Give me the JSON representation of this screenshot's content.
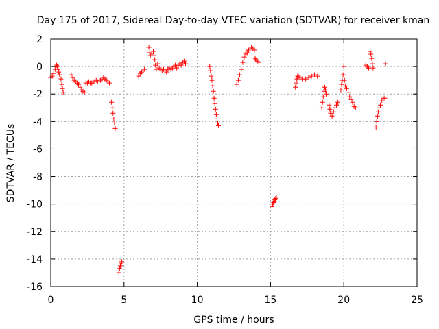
{
  "chart_data": {
    "type": "scatter",
    "title": "Day 175 of 2017, Sidereal Day-to-day VTEC variation (SDTVAR) for receiver kman",
    "xlabel": "GPS time / hours",
    "ylabel": "SDTVAR / TECUs",
    "xlim": [
      0,
      25
    ],
    "ylim": [
      -16,
      2
    ],
    "xticks": [
      0,
      5,
      10,
      15,
      20,
      25
    ],
    "xtick_labels": [
      "0",
      "5",
      "10",
      "15",
      "20",
      "25"
    ],
    "yticks": [
      2,
      0,
      -2,
      -4,
      -6,
      -8,
      -10,
      -12,
      -14,
      -16
    ],
    "ytick_labels": [
      "2",
      "0",
      "-2",
      "-4",
      "-6",
      "-8",
      "-10",
      "-12",
      "-14",
      "-16"
    ],
    "grid": true,
    "marker": "+",
    "marker_color": "#ff0000",
    "series": [
      {
        "name": "SDTVAR",
        "points": [
          [
            0.0,
            -0.8
          ],
          [
            0.1,
            -0.7
          ],
          [
            0.2,
            -0.5
          ],
          [
            0.3,
            -0.2
          ],
          [
            0.35,
            0.0
          ],
          [
            0.4,
            0.1
          ],
          [
            0.45,
            0.0
          ],
          [
            0.5,
            -0.2
          ],
          [
            0.55,
            -0.4
          ],
          [
            0.6,
            -0.6
          ],
          [
            0.7,
            -0.9
          ],
          [
            0.75,
            -1.3
          ],
          [
            0.8,
            -1.6
          ],
          [
            0.85,
            -1.9
          ],
          [
            1.4,
            -0.6
          ],
          [
            1.5,
            -0.8
          ],
          [
            1.6,
            -1.0
          ],
          [
            1.7,
            -1.1
          ],
          [
            1.8,
            -1.2
          ],
          [
            1.9,
            -1.3
          ],
          [
            2.0,
            -1.5
          ],
          [
            2.1,
            -1.7
          ],
          [
            2.2,
            -1.8
          ],
          [
            2.3,
            -1.9
          ],
          [
            2.4,
            -1.2
          ],
          [
            2.5,
            -1.2
          ],
          [
            2.6,
            -1.1
          ],
          [
            2.7,
            -1.2
          ],
          [
            2.8,
            -1.2
          ],
          [
            2.9,
            -1.1
          ],
          [
            3.0,
            -1.1
          ],
          [
            3.1,
            -1.0
          ],
          [
            3.2,
            -1.1
          ],
          [
            3.3,
            -1.1
          ],
          [
            3.4,
            -1.0
          ],
          [
            3.5,
            -0.9
          ],
          [
            3.6,
            -0.8
          ],
          [
            3.7,
            -0.9
          ],
          [
            3.8,
            -1.0
          ],
          [
            3.9,
            -1.1
          ],
          [
            4.0,
            -1.2
          ],
          [
            4.15,
            -2.6
          ],
          [
            4.2,
            -3.0
          ],
          [
            4.25,
            -3.4
          ],
          [
            4.3,
            -3.8
          ],
          [
            4.35,
            -4.1
          ],
          [
            4.4,
            -4.5
          ],
          [
            4.65,
            -15.0
          ],
          [
            4.7,
            -14.7
          ],
          [
            4.75,
            -14.5
          ],
          [
            4.8,
            -14.3
          ],
          [
            4.85,
            -14.2
          ],
          [
            6.0,
            -0.7
          ],
          [
            6.1,
            -0.5
          ],
          [
            6.2,
            -0.4
          ],
          [
            6.3,
            -0.3
          ],
          [
            6.4,
            -0.2
          ],
          [
            6.7,
            1.4
          ],
          [
            6.75,
            1.0
          ],
          [
            6.8,
            0.8
          ],
          [
            6.9,
            0.9
          ],
          [
            7.0,
            1.1
          ],
          [
            7.05,
            0.8
          ],
          [
            7.1,
            0.5
          ],
          [
            7.15,
            0.1
          ],
          [
            7.2,
            -0.2
          ],
          [
            7.3,
            0.2
          ],
          [
            7.4,
            -0.1
          ],
          [
            7.5,
            -0.2
          ],
          [
            7.6,
            -0.3
          ],
          [
            7.7,
            -0.2
          ],
          [
            7.8,
            -0.3
          ],
          [
            7.9,
            -0.4
          ],
          [
            8.0,
            -0.2
          ],
          [
            8.1,
            -0.1
          ],
          [
            8.2,
            -0.2
          ],
          [
            8.3,
            -0.1
          ],
          [
            8.4,
            0.0
          ],
          [
            8.5,
            0.1
          ],
          [
            8.6,
            -0.1
          ],
          [
            8.7,
            0.1
          ],
          [
            8.8,
            0.2
          ],
          [
            8.9,
            0.1
          ],
          [
            9.0,
            0.3
          ],
          [
            9.1,
            0.4
          ],
          [
            9.2,
            0.2
          ],
          [
            10.85,
            0.0
          ],
          [
            10.9,
            -0.3
          ],
          [
            10.95,
            -0.7
          ],
          [
            11.0,
            -1.0
          ],
          [
            11.05,
            -1.4
          ],
          [
            11.1,
            -1.8
          ],
          [
            11.15,
            -2.3
          ],
          [
            11.2,
            -2.7
          ],
          [
            11.25,
            -3.1
          ],
          [
            11.3,
            -3.5
          ],
          [
            11.35,
            -3.8
          ],
          [
            11.4,
            -4.1
          ],
          [
            11.45,
            -4.3
          ],
          [
            12.7,
            -1.3
          ],
          [
            12.8,
            -1.0
          ],
          [
            12.9,
            -0.6
          ],
          [
            13.0,
            -0.2
          ],
          [
            13.1,
            0.3
          ],
          [
            13.2,
            0.7
          ],
          [
            13.3,
            0.9
          ],
          [
            13.4,
            1.0
          ],
          [
            13.5,
            1.2
          ],
          [
            13.6,
            1.3
          ],
          [
            13.7,
            1.4
          ],
          [
            13.8,
            1.3
          ],
          [
            13.9,
            1.2
          ],
          [
            13.95,
            0.6
          ],
          [
            14.0,
            0.5
          ],
          [
            14.1,
            0.4
          ],
          [
            14.2,
            0.3
          ],
          [
            15.1,
            -10.2
          ],
          [
            15.15,
            -10.0
          ],
          [
            15.2,
            -9.9
          ],
          [
            15.25,
            -9.8
          ],
          [
            15.3,
            -9.7
          ],
          [
            15.35,
            -9.6
          ],
          [
            15.4,
            -9.5
          ],
          [
            16.7,
            -1.5
          ],
          [
            16.75,
            -1.2
          ],
          [
            16.8,
            -0.9
          ],
          [
            16.85,
            -0.7
          ],
          [
            16.9,
            -0.7
          ],
          [
            17.0,
            -0.8
          ],
          [
            17.2,
            -0.9
          ],
          [
            17.4,
            -0.9
          ],
          [
            17.6,
            -0.8
          ],
          [
            17.8,
            -0.7
          ],
          [
            18.0,
            -0.6
          ],
          [
            18.2,
            -0.7
          ],
          [
            18.5,
            -3.0
          ],
          [
            18.55,
            -2.6
          ],
          [
            18.6,
            -2.2
          ],
          [
            18.65,
            -1.8
          ],
          [
            18.7,
            -1.5
          ],
          [
            18.75,
            -1.7
          ],
          [
            18.8,
            -2.0
          ],
          [
            19.0,
            -2.8
          ],
          [
            19.05,
            -3.1
          ],
          [
            19.1,
            -3.4
          ],
          [
            19.2,
            -3.6
          ],
          [
            19.3,
            -3.3
          ],
          [
            19.4,
            -3.0
          ],
          [
            19.5,
            -2.8
          ],
          [
            19.6,
            -2.6
          ],
          [
            19.8,
            -1.7
          ],
          [
            19.85,
            -1.3
          ],
          [
            19.9,
            -1.0
          ],
          [
            19.95,
            -0.6
          ],
          [
            20.0,
            0.0
          ],
          [
            20.05,
            -1.0
          ],
          [
            20.1,
            -1.4
          ],
          [
            20.2,
            -1.6
          ],
          [
            20.3,
            -1.9
          ],
          [
            20.4,
            -2.2
          ],
          [
            20.5,
            -2.4
          ],
          [
            20.6,
            -2.6
          ],
          [
            20.7,
            -2.9
          ],
          [
            20.8,
            -3.0
          ],
          [
            21.5,
            0.1
          ],
          [
            21.6,
            0.0
          ],
          [
            21.7,
            -0.1
          ],
          [
            21.8,
            1.1
          ],
          [
            21.85,
            0.9
          ],
          [
            21.9,
            0.6
          ],
          [
            21.95,
            0.2
          ],
          [
            22.0,
            -0.1
          ],
          [
            22.2,
            -4.4
          ],
          [
            22.25,
            -4.0
          ],
          [
            22.3,
            -3.6
          ],
          [
            22.35,
            -3.3
          ],
          [
            22.4,
            -3.0
          ],
          [
            22.5,
            -2.8
          ],
          [
            22.6,
            -2.5
          ],
          [
            22.7,
            -2.3
          ],
          [
            22.8,
            -2.3
          ],
          [
            22.85,
            0.2
          ]
        ]
      }
    ]
  }
}
